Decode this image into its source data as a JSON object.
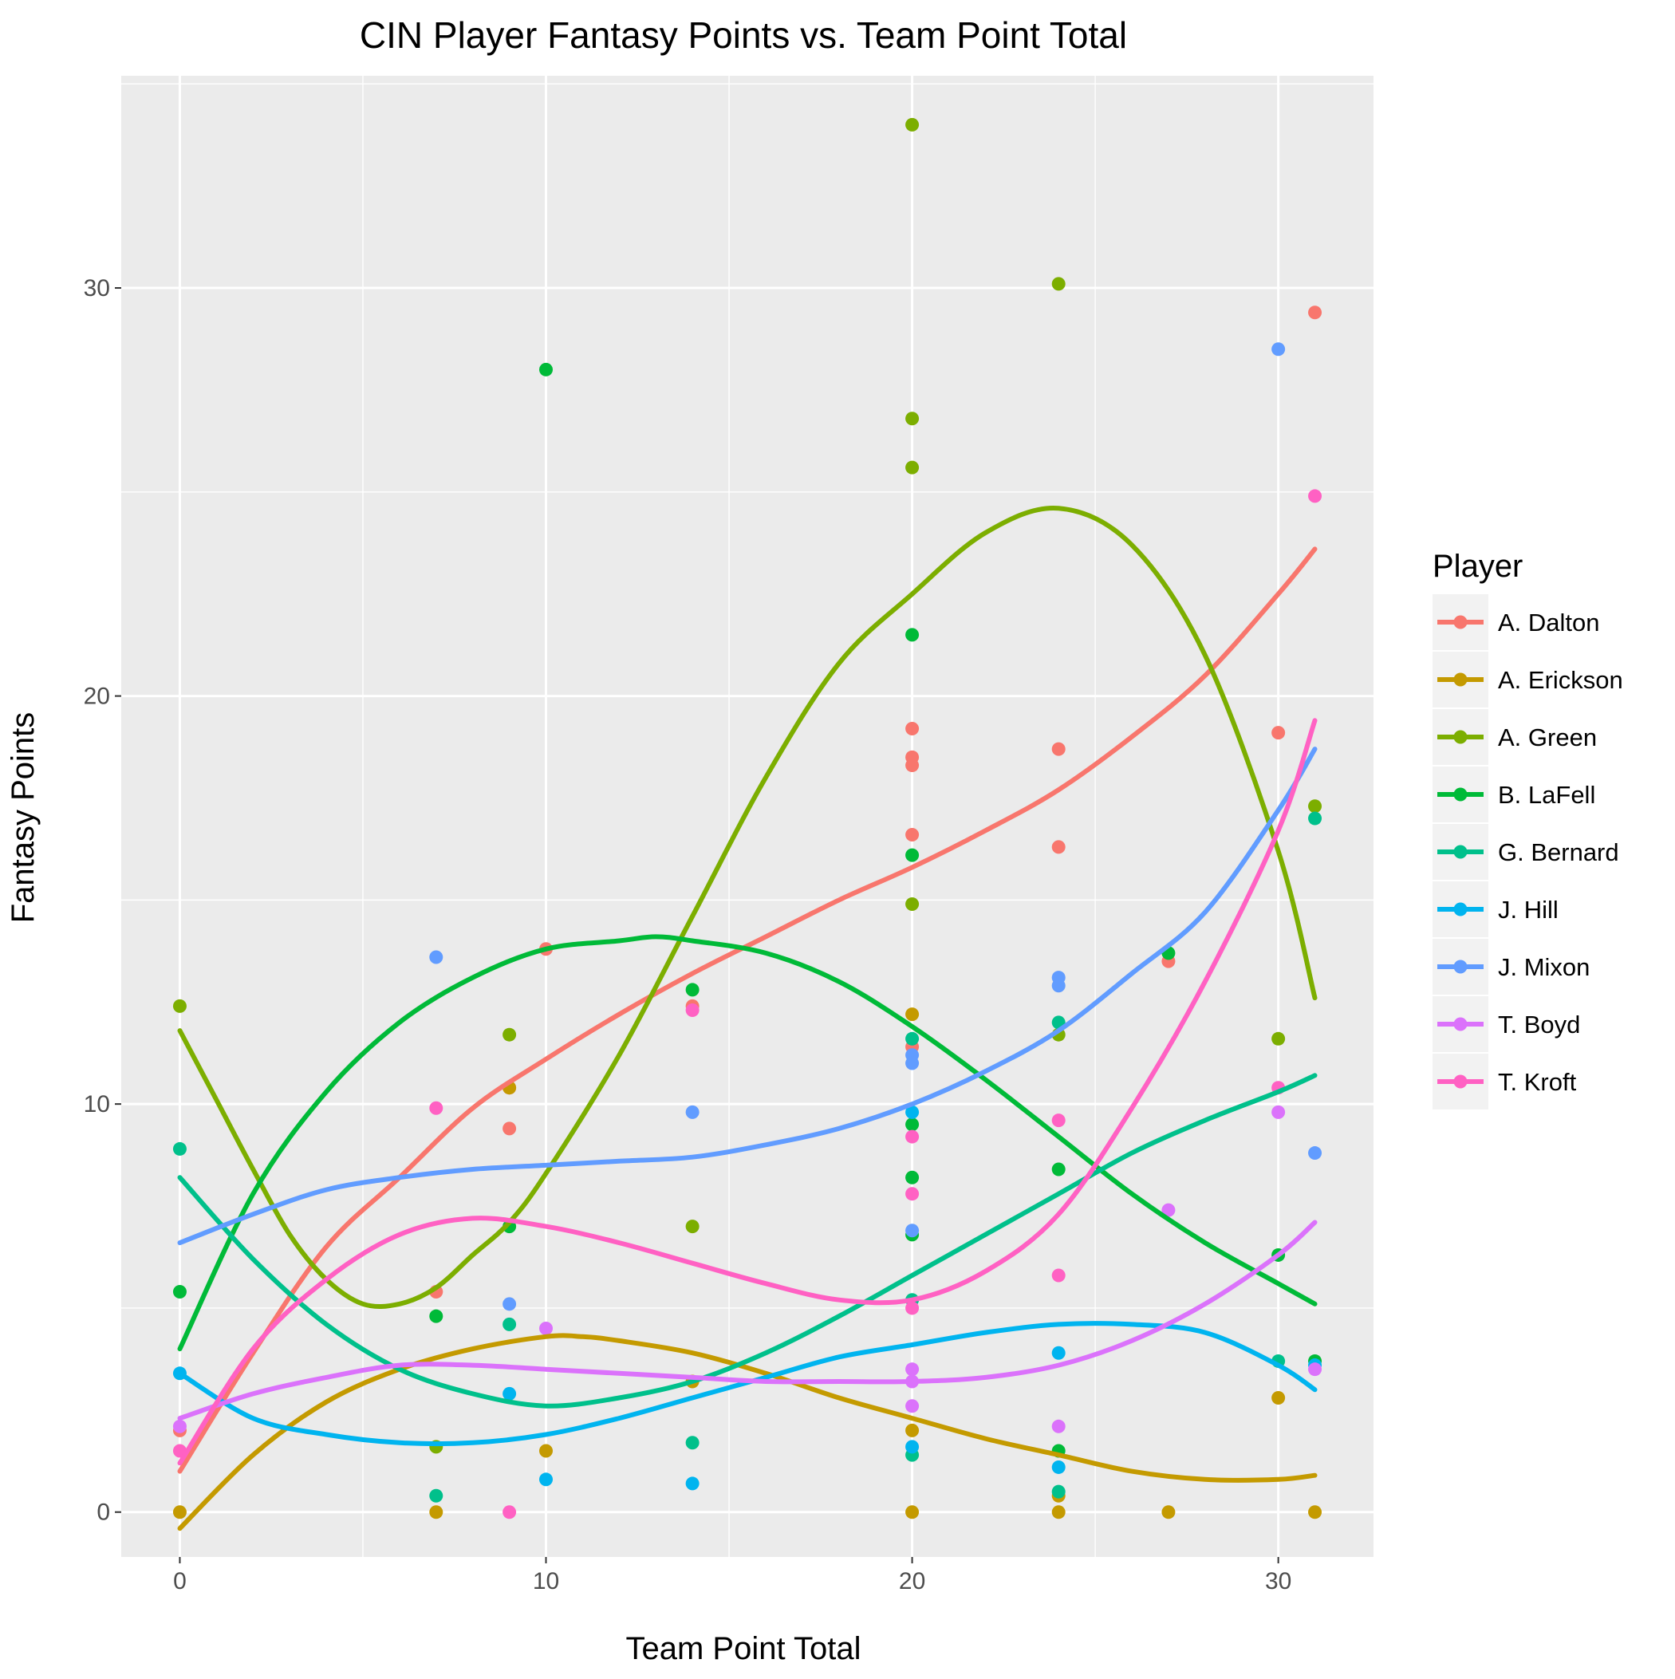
{
  "chart_data": {
    "type": "scatter",
    "title": "CIN Player Fantasy Points vs. Team Point Total",
    "xlabel": "Team Point Total",
    "ylabel": "Fantasy Points",
    "xlim": [
      -1.6,
      32.6
    ],
    "ylim": [
      -1.1,
      35.2
    ],
    "xticks": [
      0,
      10,
      20,
      30
    ],
    "yticks": [
      0,
      10,
      20,
      30
    ],
    "grid": true,
    "panel_background": "#EBEBEB",
    "legend": {
      "title": "Player",
      "position": "right"
    },
    "series": [
      {
        "name": "A. Dalton",
        "color": "#F8766D",
        "points": [
          [
            0,
            2.0
          ],
          [
            7,
            5.4
          ],
          [
            9,
            10.4
          ],
          [
            9,
            9.4
          ],
          [
            10,
            13.8
          ],
          [
            14,
            12.4
          ],
          [
            20,
            19.2
          ],
          [
            20,
            18.5
          ],
          [
            20,
            18.3
          ],
          [
            20,
            16.6
          ],
          [
            20,
            11.4
          ],
          [
            24,
            18.7
          ],
          [
            24,
            16.3
          ],
          [
            27,
            13.5
          ],
          [
            30,
            19.1
          ],
          [
            31,
            29.4
          ]
        ],
        "curve": [
          [
            0,
            1.0
          ],
          [
            2,
            3.9
          ],
          [
            4,
            6.5
          ],
          [
            6,
            8.2
          ],
          [
            8,
            9.9
          ],
          [
            10,
            11.1
          ],
          [
            12,
            12.2
          ],
          [
            14,
            13.2
          ],
          [
            16,
            14.1
          ],
          [
            18,
            15.0
          ],
          [
            20,
            15.8
          ],
          [
            22,
            16.7
          ],
          [
            24,
            17.7
          ],
          [
            26,
            19.0
          ],
          [
            28,
            20.5
          ],
          [
            30,
            22.5
          ],
          [
            31,
            23.6
          ]
        ]
      },
      {
        "name": "A. Erickson",
        "color": "#C49A00",
        "points": [
          [
            0,
            0
          ],
          [
            7,
            0
          ],
          [
            9,
            10.4
          ],
          [
            10,
            1.5
          ],
          [
            14,
            3.2
          ],
          [
            20,
            12.2
          ],
          [
            20,
            2.0
          ],
          [
            20,
            0
          ],
          [
            24,
            0.4
          ],
          [
            24,
            0
          ],
          [
            27,
            0
          ],
          [
            30,
            2.8
          ],
          [
            31,
            0
          ]
        ],
        "curve": [
          [
            0,
            -0.4
          ],
          [
            2,
            1.4
          ],
          [
            4,
            2.7
          ],
          [
            6,
            3.5
          ],
          [
            8,
            4.0
          ],
          [
            10,
            4.3
          ],
          [
            11,
            4.3
          ],
          [
            12,
            4.2
          ],
          [
            14,
            3.9
          ],
          [
            16,
            3.4
          ],
          [
            18,
            2.8
          ],
          [
            20,
            2.3
          ],
          [
            22,
            1.8
          ],
          [
            24,
            1.4
          ],
          [
            26,
            1.0
          ],
          [
            28,
            0.8
          ],
          [
            30,
            0.8
          ],
          [
            31,
            0.9
          ]
        ]
      },
      {
        "name": "A. Green",
        "color": "#7CAE00",
        "points": [
          [
            0,
            12.4
          ],
          [
            7,
            1.6
          ],
          [
            9,
            11.7
          ],
          [
            14,
            7.0
          ],
          [
            20,
            34.0
          ],
          [
            20,
            26.8
          ],
          [
            20,
            25.6
          ],
          [
            20,
            14.9
          ],
          [
            24,
            30.1
          ],
          [
            24,
            11.7
          ],
          [
            30,
            11.6
          ],
          [
            31,
            17.3
          ]
        ],
        "curve": [
          [
            0,
            11.8
          ],
          [
            1,
            10.1
          ],
          [
            2,
            8.4
          ],
          [
            3,
            6.8
          ],
          [
            4,
            5.7
          ],
          [
            5,
            5.1
          ],
          [
            6,
            5.1
          ],
          [
            7,
            5.5
          ],
          [
            8,
            6.3
          ],
          [
            9,
            7.1
          ],
          [
            10,
            8.3
          ],
          [
            12,
            11.2
          ],
          [
            14,
            14.6
          ],
          [
            16,
            18.0
          ],
          [
            18,
            20.8
          ],
          [
            20,
            22.5
          ],
          [
            22,
            24.0
          ],
          [
            24,
            24.6
          ],
          [
            26,
            23.7
          ],
          [
            28,
            21.0
          ],
          [
            30,
            16.2
          ],
          [
            31,
            12.6
          ]
        ]
      },
      {
        "name": "B. LaFell",
        "color": "#00BA38",
        "points": [
          [
            0,
            5.4
          ],
          [
            7,
            4.8
          ],
          [
            9,
            7.0
          ],
          [
            10,
            28.0
          ],
          [
            14,
            12.8
          ],
          [
            20,
            21.5
          ],
          [
            20,
            16.1
          ],
          [
            20,
            9.5
          ],
          [
            20,
            8.2
          ],
          [
            20,
            6.8
          ],
          [
            24,
            8.4
          ],
          [
            24,
            1.5
          ],
          [
            27,
            13.7
          ],
          [
            30,
            6.3
          ],
          [
            31,
            3.7
          ]
        ],
        "curve": [
          [
            0,
            4.0
          ],
          [
            2,
            7.8
          ],
          [
            4,
            10.3
          ],
          [
            6,
            12.0
          ],
          [
            8,
            13.1
          ],
          [
            10,
            13.8
          ],
          [
            12,
            14.0
          ],
          [
            13,
            14.1
          ],
          [
            14,
            14.0
          ],
          [
            16,
            13.7
          ],
          [
            18,
            13.0
          ],
          [
            20,
            11.9
          ],
          [
            22,
            10.6
          ],
          [
            24,
            9.2
          ],
          [
            26,
            7.8
          ],
          [
            28,
            6.6
          ],
          [
            30,
            5.6
          ],
          [
            31,
            5.1
          ]
        ]
      },
      {
        "name": "G. Bernard",
        "color": "#00C08B",
        "points": [
          [
            0,
            8.9
          ],
          [
            7,
            0.4
          ],
          [
            9,
            4.6
          ],
          [
            14,
            1.7
          ],
          [
            20,
            11.6
          ],
          [
            20,
            5.2
          ],
          [
            20,
            1.4
          ],
          [
            24,
            12.0
          ],
          [
            24,
            0.5
          ],
          [
            30,
            3.7
          ],
          [
            31,
            17.0
          ]
        ],
        "curve": [
          [
            0,
            8.2
          ],
          [
            2,
            6.2
          ],
          [
            4,
            4.6
          ],
          [
            6,
            3.5
          ],
          [
            8,
            2.9
          ],
          [
            10,
            2.6
          ],
          [
            12,
            2.8
          ],
          [
            14,
            3.2
          ],
          [
            16,
            3.9
          ],
          [
            18,
            4.8
          ],
          [
            20,
            5.8
          ],
          [
            22,
            6.8
          ],
          [
            24,
            7.8
          ],
          [
            26,
            8.8
          ],
          [
            28,
            9.6
          ],
          [
            30,
            10.3
          ],
          [
            31,
            10.7
          ]
        ]
      },
      {
        "name": "J. Hill",
        "color": "#00B4EF",
        "points": [
          [
            0,
            3.4
          ],
          [
            9,
            2.9
          ],
          [
            10,
            0.8
          ],
          [
            14,
            0.7
          ],
          [
            20,
            9.8
          ],
          [
            20,
            1.6
          ],
          [
            24,
            3.9
          ],
          [
            24,
            1.1
          ],
          [
            31,
            3.6
          ]
        ],
        "curve": [
          [
            0,
            3.4
          ],
          [
            2,
            2.3
          ],
          [
            4,
            1.9
          ],
          [
            6,
            1.7
          ],
          [
            8,
            1.7
          ],
          [
            10,
            1.9
          ],
          [
            12,
            2.3
          ],
          [
            14,
            2.8
          ],
          [
            16,
            3.3
          ],
          [
            18,
            3.8
          ],
          [
            20,
            4.1
          ],
          [
            22,
            4.4
          ],
          [
            24,
            4.6
          ],
          [
            26,
            4.6
          ],
          [
            28,
            4.4
          ],
          [
            30,
            3.6
          ],
          [
            31,
            3.0
          ]
        ]
      },
      {
        "name": "J. Mixon",
        "color": "#619CFF",
        "points": [
          [
            7,
            13.6
          ],
          [
            9,
            5.1
          ],
          [
            14,
            9.8
          ],
          [
            20,
            11.2
          ],
          [
            20,
            11.0
          ],
          [
            20,
            6.9
          ],
          [
            24,
            13.1
          ],
          [
            24,
            12.9
          ],
          [
            30,
            28.5
          ],
          [
            31,
            8.8
          ]
        ],
        "curve": [
          [
            0,
            6.6
          ],
          [
            2,
            7.3
          ],
          [
            4,
            7.9
          ],
          [
            6,
            8.2
          ],
          [
            8,
            8.4
          ],
          [
            10,
            8.5
          ],
          [
            12,
            8.6
          ],
          [
            14,
            8.7
          ],
          [
            16,
            9.0
          ],
          [
            18,
            9.4
          ],
          [
            20,
            10.0
          ],
          [
            22,
            10.8
          ],
          [
            24,
            11.8
          ],
          [
            26,
            13.2
          ],
          [
            28,
            14.7
          ],
          [
            30,
            17.2
          ],
          [
            31,
            18.7
          ]
        ]
      },
      {
        "name": "T. Boyd",
        "color": "#DB72FB",
        "points": [
          [
            0,
            2.1
          ],
          [
            10,
            4.5
          ],
          [
            20,
            3.5
          ],
          [
            20,
            3.2
          ],
          [
            20,
            2.6
          ],
          [
            24,
            2.1
          ],
          [
            27,
            7.4
          ],
          [
            30,
            9.8
          ],
          [
            31,
            3.5
          ]
        ],
        "curve": [
          [
            0,
            2.3
          ],
          [
            2,
            2.9
          ],
          [
            4,
            3.3
          ],
          [
            6,
            3.6
          ],
          [
            8,
            3.6
          ],
          [
            10,
            3.5
          ],
          [
            12,
            3.4
          ],
          [
            14,
            3.3
          ],
          [
            16,
            3.2
          ],
          [
            18,
            3.2
          ],
          [
            20,
            3.2
          ],
          [
            22,
            3.3
          ],
          [
            24,
            3.6
          ],
          [
            26,
            4.2
          ],
          [
            28,
            5.1
          ],
          [
            30,
            6.3
          ],
          [
            31,
            7.1
          ]
        ]
      },
      {
        "name": "T. Kroft",
        "color": "#FF61C3",
        "points": [
          [
            0,
            1.5
          ],
          [
            7,
            9.9
          ],
          [
            9,
            0
          ],
          [
            14,
            12.3
          ],
          [
            20,
            9.2
          ],
          [
            20,
            7.8
          ],
          [
            20,
            5.0
          ],
          [
            24,
            9.6
          ],
          [
            24,
            5.8
          ],
          [
            30,
            10.4
          ],
          [
            31,
            24.9
          ]
        ],
        "curve": [
          [
            0,
            1.2
          ],
          [
            2,
            4.0
          ],
          [
            4,
            5.7
          ],
          [
            6,
            6.8
          ],
          [
            8,
            7.2
          ],
          [
            10,
            7.0
          ],
          [
            12,
            6.6
          ],
          [
            14,
            6.1
          ],
          [
            16,
            5.6
          ],
          [
            18,
            5.2
          ],
          [
            20,
            5.2
          ],
          [
            22,
            5.9
          ],
          [
            24,
            7.3
          ],
          [
            26,
            9.9
          ],
          [
            28,
            13.0
          ],
          [
            30,
            16.7
          ],
          [
            31,
            19.4
          ]
        ]
      }
    ]
  }
}
